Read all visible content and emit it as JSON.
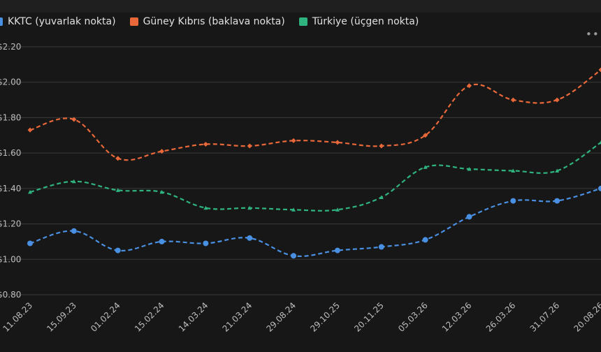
{
  "legend": {
    "kktc": "KKTC (yuvarlak nokta)",
    "guney": "Güney Kıbrıs (baklava nokta)",
    "turkiye": "Türkiye (üçgen nokta)"
  },
  "menu_icon": "more-horizontal-icon",
  "chart_data": {
    "type": "line",
    "categories": [
      "11.08.23",
      "15.09.23",
      "01.02.24",
      "15.02.24",
      "14.03.24",
      "21.03.24",
      "29.08.24",
      "29.10.25",
      "20.11.25",
      "05.03.26",
      "12.03.26",
      "26.03.26",
      "31.07.26",
      "20.08.26"
    ],
    "y_ticks": [
      "$0.80",
      "$1.00",
      "$1.20",
      "$1.40",
      "$1.60",
      "$1.80",
      "$2.00",
      "$2.20"
    ],
    "ylim": [
      0.8,
      2.2
    ],
    "grid": true,
    "legend_position": "top-left",
    "series": [
      {
        "name": "KKTC (yuvarlak nokta)",
        "color": "#4a90e2",
        "marker": "circle",
        "values": [
          1.09,
          1.16,
          1.05,
          1.1,
          1.09,
          1.12,
          1.02,
          1.05,
          1.07,
          1.11,
          1.24,
          1.33,
          1.33,
          1.4
        ]
      },
      {
        "name": "Güney Kıbrıs (baklava nokta)",
        "color": "#e8683a",
        "marker": "diamond",
        "values": [
          1.73,
          1.79,
          1.57,
          1.61,
          1.65,
          1.64,
          1.67,
          1.66,
          1.64,
          1.7,
          1.98,
          1.9,
          1.9,
          2.07
        ]
      },
      {
        "name": "Türkiye (üçgen nokta)",
        "color": "#2fb37f",
        "marker": "triangle",
        "values": [
          1.38,
          1.44,
          1.39,
          1.38,
          1.29,
          1.29,
          1.28,
          1.28,
          1.35,
          1.52,
          1.51,
          1.5,
          1.5,
          1.66
        ]
      }
    ]
  }
}
